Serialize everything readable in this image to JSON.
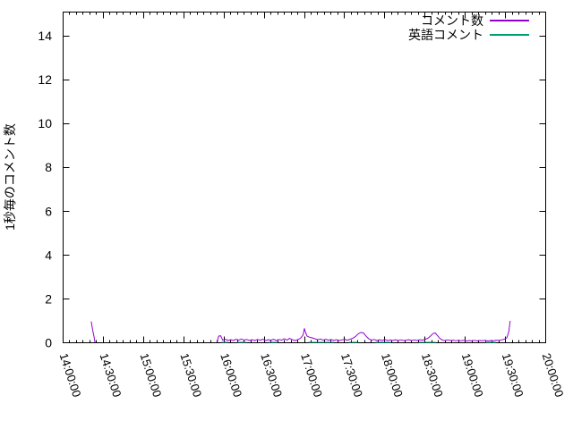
{
  "chart_data": {
    "type": "line",
    "title": "",
    "xlabel": "",
    "ylabel": "1秒毎のコメント数",
    "grid": false,
    "x_axis": {
      "start": "14:00:00",
      "end": "20:00:00",
      "duration_minutes": 360,
      "major_tick_minutes": 30,
      "minor_tick_minutes": 5,
      "tick_labels": [
        "14:00:00",
        "14:30:00",
        "15:00:00",
        "15:30:00",
        "16:00:00",
        "16:30:00",
        "17:00:00",
        "17:30:00",
        "18:00:00",
        "18:30:00",
        "19:00:00",
        "19:30:00",
        "20:00:00"
      ]
    },
    "y_axis": {
      "min": 0,
      "max": 15.1,
      "ticks": [
        0,
        2,
        4,
        6,
        8,
        10,
        12,
        14
      ]
    },
    "legend": {
      "position": "top-right-inside",
      "items": [
        {
          "label": "コメント数",
          "color": "#9400d3"
        },
        {
          "label": "英語コメント",
          "color": "#009e73"
        }
      ]
    },
    "series_x_unit": "minutes_after_14:00:00",
    "series": [
      {
        "name": "コメント数",
        "color": "#9400d3",
        "segments": [
          [
            [
              21,
              0.97
            ],
            [
              22,
              0.6
            ],
            [
              23,
              0.3
            ],
            [
              23.8,
              0.02
            ]
          ],
          [
            [
              115,
              0.04
            ],
            [
              116,
              0.3
            ],
            [
              117.5,
              0.32
            ],
            [
              119,
              0.12
            ],
            [
              121,
              0.16
            ],
            [
              123,
              0.1
            ],
            [
              125,
              0.14
            ],
            [
              127,
              0.1
            ],
            [
              129,
              0.16
            ],
            [
              131,
              0.12
            ],
            [
              133,
              0.17
            ],
            [
              135,
              0.12
            ],
            [
              137,
              0.15
            ],
            [
              139,
              0.1
            ],
            [
              141,
              0.14
            ],
            [
              143,
              0.1
            ],
            [
              145,
              0.15
            ],
            [
              147,
              0.12
            ],
            [
              149,
              0.16
            ],
            [
              151,
              0.1
            ],
            [
              153,
              0.14
            ],
            [
              155,
              0.12
            ],
            [
              157,
              0.16
            ],
            [
              159,
              0.1
            ],
            [
              161,
              0.15
            ],
            [
              163,
              0.12
            ],
            [
              165,
              0.18
            ],
            [
              167,
              0.12
            ],
            [
              169,
              0.2
            ],
            [
              171,
              0.14
            ],
            [
              173,
              0.1
            ],
            [
              175,
              0.14
            ],
            [
              177,
              0.2
            ],
            [
              179,
              0.35
            ],
            [
              180,
              0.65
            ],
            [
              181,
              0.45
            ],
            [
              182,
              0.3
            ],
            [
              184,
              0.25
            ],
            [
              186,
              0.22
            ],
            [
              188,
              0.18
            ],
            [
              190,
              0.14
            ],
            [
              192,
              0.17
            ],
            [
              194,
              0.12
            ],
            [
              196,
              0.16
            ],
            [
              198,
              0.12
            ],
            [
              200,
              0.15
            ],
            [
              202,
              0.1
            ],
            [
              204,
              0.14
            ],
            [
              206,
              0.1
            ],
            [
              208,
              0.13
            ],
            [
              210,
              0.16
            ],
            [
              212,
              0.12
            ],
            [
              214,
              0.16
            ],
            [
              216,
              0.2
            ],
            [
              218,
              0.28
            ],
            [
              220,
              0.4
            ],
            [
              222,
              0.47
            ],
            [
              224,
              0.45
            ],
            [
              226,
              0.3
            ],
            [
              228,
              0.18
            ],
            [
              230,
              0.12
            ],
            [
              232,
              0.15
            ],
            [
              234,
              0.1
            ],
            [
              236,
              0.14
            ],
            [
              238,
              0.1
            ],
            [
              240,
              0.15
            ],
            [
              242,
              0.1
            ],
            [
              244,
              0.13
            ],
            [
              246,
              0.1
            ],
            [
              248,
              0.14
            ],
            [
              250,
              0.1
            ],
            [
              252,
              0.13
            ],
            [
              254,
              0.1
            ],
            [
              256,
              0.12
            ],
            [
              258,
              0.14
            ],
            [
              260,
              0.1
            ],
            [
              262,
              0.13
            ],
            [
              264,
              0.1
            ],
            [
              266,
              0.14
            ],
            [
              268,
              0.12
            ],
            [
              270,
              0.16
            ],
            [
              272,
              0.2
            ],
            [
              274,
              0.3
            ],
            [
              276,
              0.42
            ],
            [
              277.5,
              0.45
            ],
            [
              279,
              0.35
            ],
            [
              281,
              0.2
            ],
            [
              283,
              0.12
            ],
            [
              285,
              0.1
            ],
            [
              287,
              0.13
            ],
            [
              289,
              0.1
            ],
            [
              291,
              0.12
            ],
            [
              293,
              0.09
            ],
            [
              295,
              0.12
            ],
            [
              297,
              0.09
            ],
            [
              299,
              0.11
            ],
            [
              301,
              0.08
            ],
            [
              303,
              0.1
            ],
            [
              305,
              0.08
            ],
            [
              307,
              0.11
            ],
            [
              309,
              0.08
            ],
            [
              311,
              0.1
            ],
            [
              313,
              0.09
            ],
            [
              315,
              0.11
            ],
            [
              317,
              0.08
            ],
            [
              319,
              0.1
            ],
            [
              321,
              0.09
            ],
            [
              323,
              0.12
            ],
            [
              325,
              0.1
            ],
            [
              327,
              0.13
            ],
            [
              329,
              0.16
            ],
            [
              331,
              0.22
            ],
            [
              332.5,
              0.5
            ],
            [
              333.5,
              1.0
            ]
          ]
        ]
      },
      {
        "name": "英語コメント",
        "color": "#009e73",
        "segments": [
          [
            [
              118,
              0.02
            ],
            [
              123,
              0.02
            ]
          ],
          [
            [
              130,
              0.02
            ],
            [
              137,
              0.02
            ]
          ],
          [
            [
              153,
              0.02
            ],
            [
              160,
              0.02
            ]
          ],
          [
            [
              183,
              0.02
            ],
            [
              202,
              0.02
            ]
          ],
          [
            [
              213,
              0.02
            ],
            [
              220,
              0.02
            ]
          ],
          [
            [
              233,
              0.02
            ],
            [
              245,
              0.02
            ]
          ],
          [
            [
              265,
              0.02
            ],
            [
              278,
              0.02
            ]
          ],
          [
            [
              315,
              0.02
            ],
            [
              323,
              0.02
            ]
          ]
        ]
      }
    ]
  }
}
